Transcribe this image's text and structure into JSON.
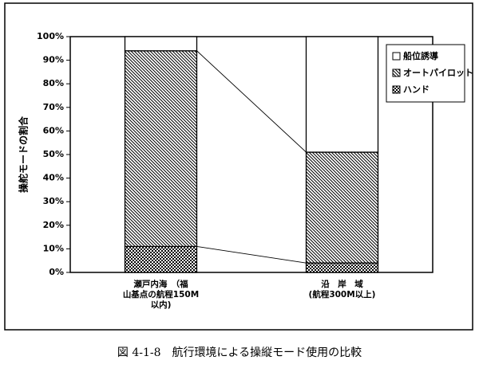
{
  "chart_data": {
    "type": "bar",
    "stacked": true,
    "categories": [
      [
        "瀬戸内海　（福",
        "山基点の航程150M",
        "以内)"
      ],
      [
        "沿　岸　域",
        "(航程300M以上)"
      ]
    ],
    "series": [
      {
        "name": "ハンド",
        "values": [
          11,
          4
        ],
        "pattern": "checker"
      },
      {
        "name": "オートパイロット",
        "values": [
          83,
          47
        ],
        "pattern": "hatch"
      },
      {
        "name": "船位誘導",
        "values": [
          6,
          49
        ],
        "pattern": "blank"
      }
    ],
    "ylabel": "操舵モードの割合",
    "ylim": [
      0,
      100
    ],
    "yticks": [
      "0%",
      "10%",
      "20%",
      "30%",
      "40%",
      "50%",
      "60%",
      "70%",
      "80%",
      "90%",
      "100%"
    ],
    "legend_position": "top-right",
    "legend_order": [
      "船位誘導",
      "オートパイロット",
      "ハンド"
    ],
    "connector_lines": true
  },
  "caption": "図 4-1-8　航行環境による操縦モード使用の比較"
}
